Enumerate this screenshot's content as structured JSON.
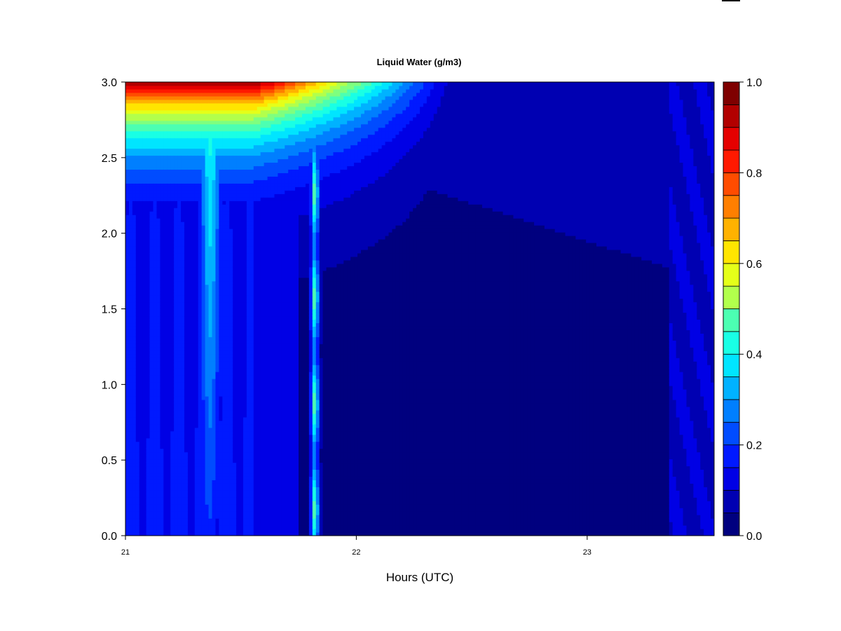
{
  "chart_data": {
    "type": "heatmap",
    "title": "Liquid Water (g/m3)",
    "xlabel": "Hours (UTC)",
    "ylabel": "",
    "xlim": [
      21.0,
      23.55
    ],
    "ylim": [
      0.0,
      3.0
    ],
    "x_ticks": [
      "21",
      "22",
      "23"
    ],
    "x_tick_values": [
      21,
      22,
      23
    ],
    "y_ticks": [
      "0.0",
      "0.5",
      "1.0",
      "1.5",
      "2.0",
      "2.5",
      "3.0"
    ],
    "y_tick_values": [
      0,
      0.5,
      1.0,
      1.5,
      2.0,
      2.5,
      3.0
    ],
    "colorbar": {
      "range": [
        0.0,
        1.0
      ],
      "levels": 20,
      "ticks": [
        "0.0",
        "0.2",
        "0.4",
        "0.6",
        "0.8",
        "1.0"
      ],
      "tick_values": [
        0,
        0.2,
        0.4,
        0.6,
        0.8,
        1.0
      ],
      "colors": [
        "#00007F",
        "#0000B2",
        "#0000E5",
        "#0019FF",
        "#004CFF",
        "#007FFF",
        "#00B2FF",
        "#00E5FF",
        "#19FFE5",
        "#4CFFB2",
        "#7FFF7F",
        "#B2FF4C",
        "#E5FF19",
        "#FFE500",
        "#FFB200",
        "#FF7F00",
        "#FF4C00",
        "#FF1900",
        "#E50000",
        "#B20000",
        "#7F0000"
      ]
    },
    "field_description_values": {
      "top_left_max": 1.0,
      "column_21_8_peak_mid": 0.45,
      "background": 0.02
    },
    "grid": false
  }
}
